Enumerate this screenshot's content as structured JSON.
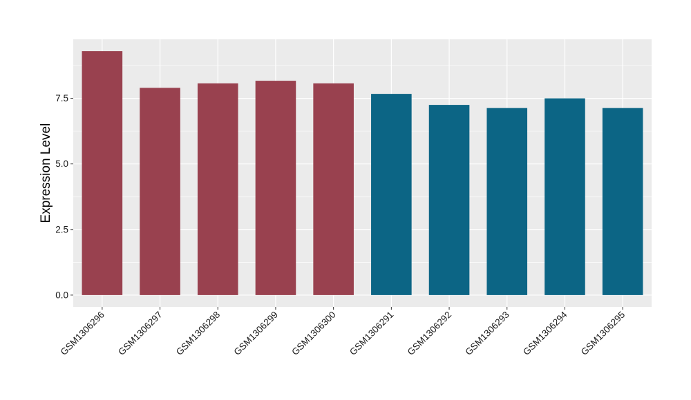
{
  "chart_data": {
    "type": "bar",
    "title": "",
    "xlabel": "",
    "ylabel": "Expression Level",
    "ylim": [
      -0.45,
      9.75
    ],
    "yticks": [
      0.0,
      2.5,
      5.0,
      7.5
    ],
    "ytick_labels": [
      "0.0",
      "2.5",
      "5.0",
      "7.5"
    ],
    "grid": true,
    "legend": "none",
    "panel_color": "#EBEBEB",
    "grid_color": "#FFFFFF",
    "categories": [
      "GSM1306296",
      "GSM1306297",
      "GSM1306298",
      "GSM1306299",
      "GSM1306300",
      "GSM1306291",
      "GSM1306292",
      "GSM1306293",
      "GSM1306294",
      "GSM1306295"
    ],
    "values": [
      9.3,
      7.9,
      8.07,
      8.17,
      8.07,
      7.67,
      7.25,
      7.13,
      7.5,
      7.13
    ],
    "bar_colors": [
      "#99414F",
      "#99414F",
      "#99414F",
      "#99414F",
      "#99414F",
      "#0C6585",
      "#0C6585",
      "#0C6585",
      "#0C6585",
      "#0C6585"
    ]
  }
}
